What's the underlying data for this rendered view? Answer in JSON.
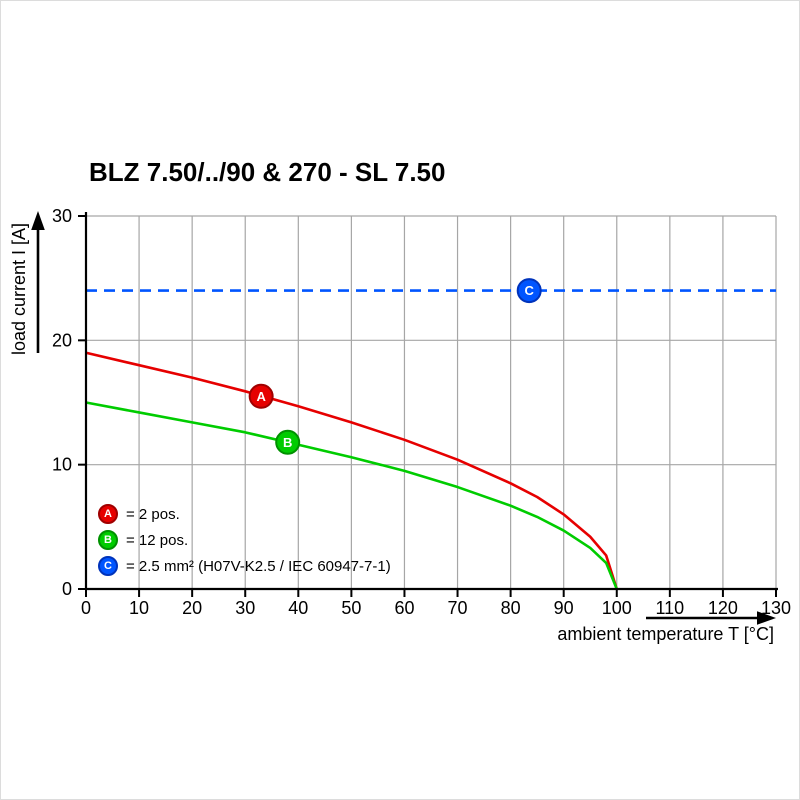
{
  "chart_data": {
    "type": "line",
    "title": "BLZ 7.50/../90 & 270 - SL 7.50",
    "xlabel": "ambient temperature T [°C]",
    "ylabel": "load current I [A]",
    "xlim": [
      0,
      130
    ],
    "ylim": [
      0,
      30
    ],
    "x_ticks": [
      0,
      10,
      20,
      30,
      40,
      50,
      60,
      70,
      80,
      90,
      100,
      110,
      120,
      130
    ],
    "y_ticks": [
      0,
      10,
      20,
      30
    ],
    "grid": true,
    "grid_color": "#a6a6a6",
    "axis_color": "#000000",
    "legend_position": "inside-bottom-left",
    "series": [
      {
        "name": "A",
        "legend_label": "= 2 pos.",
        "color": "#e60000",
        "ring": "#a00000",
        "line_style": "solid",
        "marker_at": {
          "x": 33,
          "y": 15.5
        },
        "points": [
          [
            0,
            19
          ],
          [
            10,
            18.0
          ],
          [
            20,
            17.0
          ],
          [
            30,
            15.9
          ],
          [
            40,
            14.7
          ],
          [
            50,
            13.4
          ],
          [
            60,
            12.0
          ],
          [
            70,
            10.4
          ],
          [
            80,
            8.5
          ],
          [
            85,
            7.4
          ],
          [
            90,
            6.0
          ],
          [
            95,
            4.2
          ],
          [
            98,
            2.7
          ],
          [
            100,
            0
          ]
        ]
      },
      {
        "name": "B",
        "legend_label": "= 12 pos.",
        "color": "#00cc00",
        "ring": "#009100",
        "line_style": "solid",
        "marker_at": {
          "x": 38,
          "y": 11.8
        },
        "points": [
          [
            0,
            15
          ],
          [
            10,
            14.2
          ],
          [
            20,
            13.4
          ],
          [
            30,
            12.6
          ],
          [
            40,
            11.6
          ],
          [
            50,
            10.6
          ],
          [
            60,
            9.5
          ],
          [
            70,
            8.2
          ],
          [
            80,
            6.7
          ],
          [
            85,
            5.8
          ],
          [
            90,
            4.7
          ],
          [
            95,
            3.3
          ],
          [
            98,
            2.1
          ],
          [
            100,
            0
          ]
        ]
      },
      {
        "name": "C",
        "legend_label": "= 2.5 mm² (H07V-K2.5 / IEC 60947-7-1)",
        "color": "#0055ff",
        "ring": "#0033bb",
        "line_style": "dashed",
        "hline_y": 24,
        "marker_at": {
          "x": 83.5,
          "y": 24
        },
        "points": [
          [
            0,
            24
          ],
          [
            130,
            24
          ]
        ]
      }
    ]
  }
}
